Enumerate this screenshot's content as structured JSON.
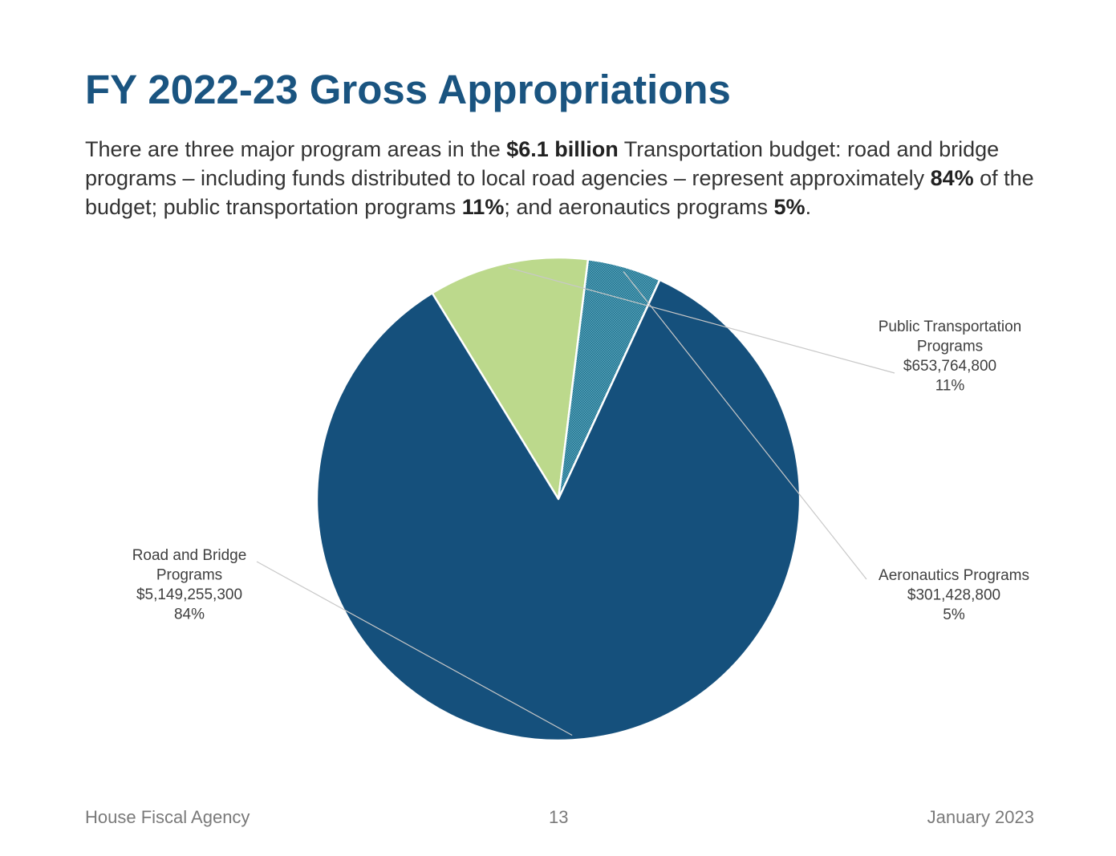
{
  "slide": {
    "title": "FY 2022-23 Gross Appropriations",
    "intro": {
      "t1": "There are three major program areas in the ",
      "b1": "$6.1 billion",
      "t2": " Transportation budget: road and bridge programs – including funds distributed to local road agencies – represent approximately ",
      "b2": "84%",
      "t3": " of the budget; public transportation programs ",
      "b3": "11%",
      "t4": "; and aeronautics programs ",
      "b4": "5%",
      "t5": "."
    }
  },
  "chart_data": {
    "type": "pie",
    "start_angle_deg": 328.5,
    "direction": "clockwise",
    "slices": [
      {
        "name_lines": [
          "Public Transportation",
          "Programs"
        ],
        "amount": "$653,764,800",
        "value": 653764800,
        "percent": "11%",
        "color": "#bcd98c",
        "pattern": "solid"
      },
      {
        "name_lines": [
          "Aeronautics Programs"
        ],
        "amount": "$301,428,800",
        "value": 301428800,
        "percent": "5%",
        "color": "#2e7f99",
        "pattern": "stipple"
      },
      {
        "name_lines": [
          "Road and Bridge",
          "Programs"
        ],
        "amount": "$5,149,255,300",
        "value": 5149255300,
        "percent": "84%",
        "color": "#15507c",
        "pattern": "solid"
      }
    ],
    "leader_line_color": "#c8c8c8"
  },
  "footer": {
    "left": "House Fiscal Agency",
    "center": "13",
    "right": "January 2023"
  }
}
